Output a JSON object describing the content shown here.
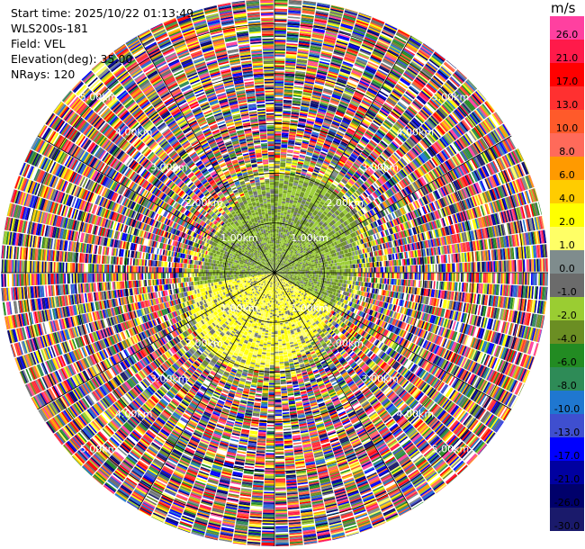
{
  "header": {
    "start_time": "Start time: 2025/10/22 01:13:49",
    "instrument": "WLS200s-181",
    "field": "Field: VEL",
    "elevation": "Elevation(deg): 35.00",
    "nrays": "NRays: 120"
  },
  "colorbar": {
    "unit": "m/s",
    "levels": [
      {
        "label": "26.0",
        "color": "#ff40a0"
      },
      {
        "label": "21.0",
        "color": "#ff1a4a"
      },
      {
        "label": "17.0",
        "color": "#ff0000"
      },
      {
        "label": "13.0",
        "color": "#ff3030"
      },
      {
        "label": "10.0",
        "color": "#ff5a2a"
      },
      {
        "label": "8.0",
        "color": "#ff6a5a"
      },
      {
        "label": "6.0",
        "color": "#ff9a00"
      },
      {
        "label": "4.0",
        "color": "#ffcc00"
      },
      {
        "label": "2.0",
        "color": "#ffff00"
      },
      {
        "label": "1.0",
        "color": "#ffff66"
      },
      {
        "label": "0.0",
        "color": "#7f8c8d"
      },
      {
        "label": "-1.0",
        "color": "#6b6b6b"
      },
      {
        "label": "-2.0",
        "color": "#9acd32"
      },
      {
        "label": "-4.0",
        "color": "#6b8e23"
      },
      {
        "label": "-6.0",
        "color": "#228b22"
      },
      {
        "label": "-8.0",
        "color": "#2e8b57"
      },
      {
        "label": "-10.0",
        "color": "#1f77d0"
      },
      {
        "label": "-13.0",
        "color": "#3f4fcf"
      },
      {
        "label": "-17.0",
        "color": "#0000ff"
      },
      {
        "label": "-21.0",
        "color": "#0000a0"
      },
      {
        "label": "-26.0",
        "color": "#00006b"
      },
      {
        "label": "-30.0",
        "color": "#1a1a6b"
      }
    ]
  },
  "chart_data": {
    "type": "heatmap",
    "projection": "polar-ppi",
    "nrays": 120,
    "max_range_km": 5.5,
    "range_rings_km": [
      1,
      2,
      3,
      4,
      5
    ],
    "ring_labels": [
      "1.00km",
      "2.00km",
      "3.00km",
      "4.00km",
      "5.00km"
    ],
    "spokes": 12,
    "grid": true,
    "field": "VEL",
    "units": "m/s",
    "vmin": -30,
    "vmax": 30
  }
}
